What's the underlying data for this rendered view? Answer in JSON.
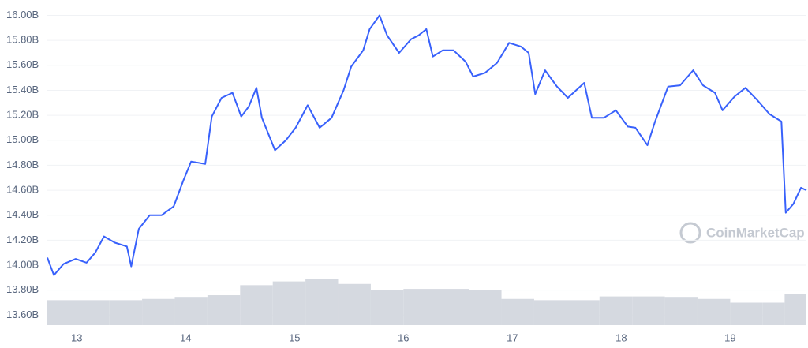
{
  "chart_data": {
    "type": "line",
    "watermark": "CoinMarketCap",
    "x": [
      12.73,
      12.79,
      12.88,
      12.99,
      13.09,
      13.17,
      13.25,
      13.35,
      13.46,
      13.5,
      13.57,
      13.67,
      13.78,
      13.89,
      13.98,
      14.05,
      14.18,
      14.24,
      14.33,
      14.43,
      14.51,
      14.58,
      14.65,
      14.7,
      14.82,
      14.92,
      15.01,
      15.12,
      15.23,
      15.34,
      15.45,
      15.52,
      15.63,
      15.69,
      15.78,
      15.85,
      15.96,
      16.07,
      16.14,
      16.21,
      16.27,
      16.36,
      16.46,
      16.57,
      16.64,
      16.75,
      16.86,
      16.97,
      17.08,
      17.15,
      17.21,
      17.3,
      17.41,
      17.51,
      17.66,
      17.73,
      17.84,
      17.95,
      18.06,
      18.13,
      18.24,
      18.31,
      18.43,
      18.54,
      18.66,
      18.75,
      18.86,
      18.93,
      19.04,
      19.14,
      19.25,
      19.36,
      19.47,
      19.51,
      19.58,
      19.65,
      19.7
    ],
    "series": [
      {
        "color": "#3861fb",
        "values": [
          14.06,
          13.92,
          14.01,
          14.05,
          14.02,
          14.1,
          14.23,
          14.18,
          14.15,
          13.99,
          14.29,
          14.4,
          14.4,
          14.47,
          14.68,
          14.83,
          14.81,
          15.19,
          15.34,
          15.38,
          15.19,
          15.27,
          15.42,
          15.18,
          14.92,
          15.0,
          15.1,
          15.28,
          15.1,
          15.18,
          15.4,
          15.59,
          15.72,
          15.89,
          16.0,
          15.84,
          15.7,
          15.81,
          15.84,
          15.89,
          15.67,
          15.72,
          15.72,
          15.63,
          15.51,
          15.54,
          15.62,
          15.78,
          15.75,
          15.7,
          15.37,
          15.56,
          15.43,
          15.34,
          15.46,
          15.18,
          15.18,
          15.24,
          15.11,
          15.1,
          14.96,
          15.15,
          15.43,
          15.44,
          15.56,
          15.44,
          15.38,
          15.24,
          15.35,
          15.42,
          15.32,
          15.21,
          15.15,
          14.42,
          14.49,
          14.62,
          14.6
        ]
      }
    ],
    "volume": {
      "color": "#d5d9e0",
      "x": [
        12.73,
        13.0,
        13.3,
        13.6,
        13.9,
        14.2,
        14.5,
        14.8,
        15.1,
        15.4,
        15.7,
        16.0,
        16.3,
        16.6,
        16.9,
        17.2,
        17.5,
        17.8,
        18.1,
        18.4,
        18.7,
        19.0,
        19.3,
        19.5
      ],
      "values": [
        13.72,
        13.72,
        13.72,
        13.73,
        13.74,
        13.76,
        13.84,
        13.87,
        13.89,
        13.85,
        13.8,
        13.81,
        13.81,
        13.8,
        13.73,
        13.72,
        13.72,
        13.75,
        13.75,
        13.74,
        13.73,
        13.7,
        13.7,
        13.77
      ]
    },
    "xlim": [
      12.73,
      19.7
    ],
    "xticks": [
      13,
      14,
      15,
      16,
      17,
      18,
      19
    ],
    "ylim": [
      13.52,
      16.06
    ],
    "yticks": [
      {
        "value": 13.6,
        "label": "13.60B"
      },
      {
        "value": 13.8,
        "label": "13.80B"
      },
      {
        "value": 14.0,
        "label": "14.00B"
      },
      {
        "value": 14.2,
        "label": "14.20B"
      },
      {
        "value": 14.4,
        "label": "14.40B"
      },
      {
        "value": 14.6,
        "label": "14.60B"
      },
      {
        "value": 14.8,
        "label": "14.80B"
      },
      {
        "value": 15.0,
        "label": "15.00B"
      },
      {
        "value": 15.2,
        "label": "15.20B"
      },
      {
        "value": 15.4,
        "label": "15.40B"
      },
      {
        "value": 15.6,
        "label": "15.60B"
      },
      {
        "value": 15.8,
        "label": "15.80B"
      },
      {
        "value": 16.0,
        "label": "16.00B"
      }
    ],
    "grid": true
  }
}
